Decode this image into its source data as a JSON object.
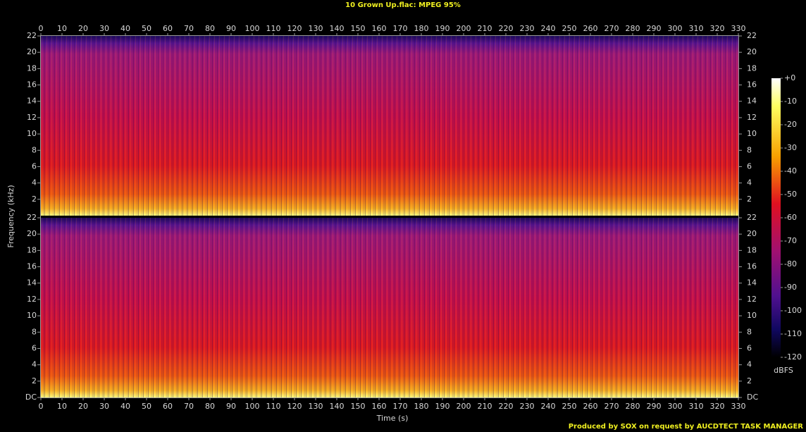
{
  "chart_data": {
    "type": "spectrogram",
    "title": "10 Grown Up.flac: MPEG 95%",
    "xlabel": "Time (s)",
    "ylabel": "Frequency (kHz)",
    "xlim": [
      0,
      330
    ],
    "xticks": [
      0,
      10,
      20,
      30,
      40,
      50,
      60,
      70,
      80,
      90,
      100,
      110,
      120,
      130,
      140,
      150,
      160,
      170,
      180,
      190,
      200,
      210,
      220,
      230,
      240,
      250,
      260,
      270,
      280,
      290,
      300,
      310,
      320,
      330
    ],
    "channels": [
      {
        "ylim": [
          0,
          22
        ],
        "yticks": [
          2,
          4,
          6,
          8,
          10,
          12,
          14,
          16,
          18,
          20,
          22
        ]
      },
      {
        "ylim": [
          0,
          22
        ],
        "yticks": [
          {
            "value": 0,
            "label": "DC"
          },
          2,
          4,
          6,
          8,
          10,
          12,
          14,
          16,
          18,
          20,
          22
        ]
      }
    ],
    "colorbar": {
      "label": "dBFS",
      "lim": [
        -120,
        0
      ],
      "ticks": [
        {
          "value": 0,
          "label": "+0"
        },
        -10,
        -20,
        -30,
        -40,
        -50,
        -60,
        -70,
        -80,
        -90,
        -100,
        -110,
        -120
      ]
    }
  },
  "footer": "Produced by SOX on request by AUCDTECT TASK MANAGER"
}
